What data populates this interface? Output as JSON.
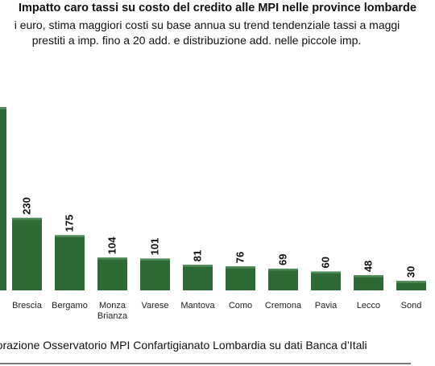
{
  "chart_data": {
    "type": "bar",
    "title": "Impatto caro tassi su costo del credito alle MPI nelle province lombarde",
    "subtitle_lines": [
      "i euro, stima maggiori costi su base annua su trend tendenziale tassi a maggi",
      "prestiti a imp. fino a 20 add. e distribuzione add. nelle piccole imp."
    ],
    "categories": [
      [
        "Brescia"
      ],
      [
        "Bergamo"
      ],
      [
        "Monza",
        "Brianza"
      ],
      [
        "Varese"
      ],
      [
        "Mantova"
      ],
      [
        "Como"
      ],
      [
        "Cremona"
      ],
      [
        "Pavia"
      ],
      [
        "Lecco"
      ],
      [
        "Sond"
      ]
    ],
    "values": [
      230,
      175,
      104,
      101,
      81,
      76,
      69,
      60,
      48,
      30
    ],
    "value_labels": [
      "230",
      "175",
      "104",
      "101",
      "81",
      "76",
      "69",
      "60",
      "48",
      "30"
    ],
    "colors": {
      "bar": "#2d6a35",
      "bar_top": "#4e8a55"
    }
  },
  "footer": "laborazione Osservatorio MPI Confartigianato Lombardia su dati Banca d’Itali"
}
